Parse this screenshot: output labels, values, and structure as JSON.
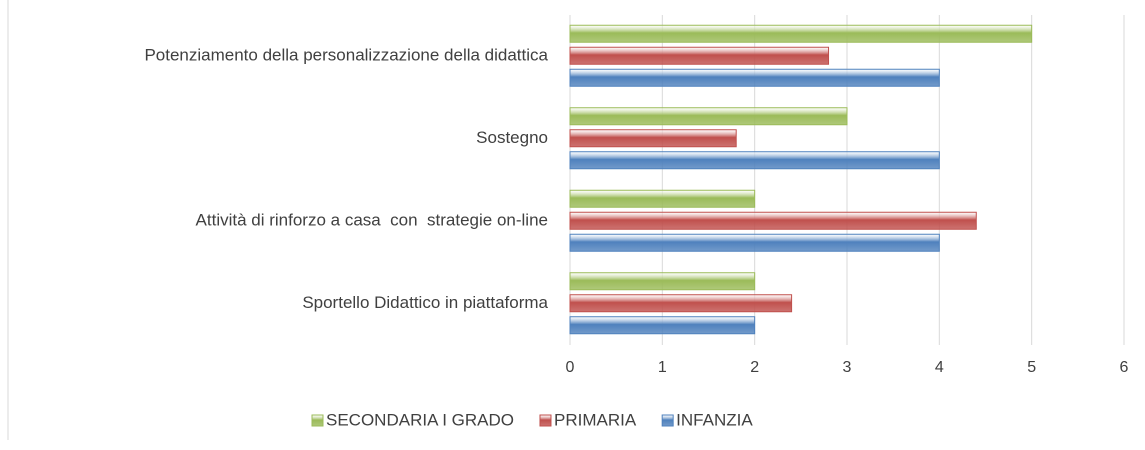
{
  "chart_data": {
    "type": "bar",
    "orientation": "horizontal",
    "categories": [
      "Potenziamento della personalizzazione della didattica",
      "Sostegno",
      "Attività di rinforzo a casa  con  strategie on-line",
      "Sportello Didattico in piattaforma"
    ],
    "series": [
      {
        "name": "SECONDARIA I GRADO",
        "color": "#9bbb59",
        "values": [
          5,
          3,
          2,
          2
        ]
      },
      {
        "name": "PRIMARIA",
        "color": "#c0504d",
        "values": [
          2.8,
          1.8,
          4.4,
          2.4
        ]
      },
      {
        "name": "INFANZIA",
        "color": "#4f81bd",
        "values": [
          4,
          4,
          4,
          2
        ]
      }
    ],
    "xlim": [
      0,
      6
    ],
    "xticks": [
      0,
      1,
      2,
      3,
      4,
      5,
      6
    ],
    "grid": true,
    "legend": "bottom"
  }
}
